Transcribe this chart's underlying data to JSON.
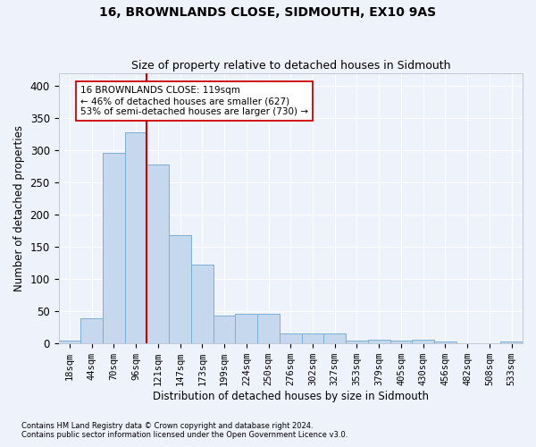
{
  "title": "16, BROWNLANDS CLOSE, SIDMOUTH, EX10 9AS",
  "subtitle": "Size of property relative to detached houses in Sidmouth",
  "xlabel_dist": "Distribution of detached houses by size in Sidmouth",
  "ylabel": "Number of detached properties",
  "footer1": "Contains HM Land Registry data © Crown copyright and database right 2024.",
  "footer2": "Contains public sector information licensed under the Open Government Licence v3.0.",
  "bin_labels": [
    "18sqm",
    "44sqm",
    "70sqm",
    "96sqm",
    "121sqm",
    "147sqm",
    "173sqm",
    "199sqm",
    "224sqm",
    "250sqm",
    "276sqm",
    "302sqm",
    "327sqm",
    "353sqm",
    "379sqm",
    "405sqm",
    "430sqm",
    "456sqm",
    "482sqm",
    "508sqm",
    "533sqm"
  ],
  "bar_values": [
    4,
    39,
    297,
    328,
    278,
    168,
    123,
    44,
    46,
    46,
    15,
    15,
    15,
    5,
    6,
    5,
    6,
    3,
    1,
    0,
    3
  ],
  "bar_color": "#c5d8ed",
  "bar_edge_color": "#7bafd4",
  "vline_x": 3.5,
  "vline_color": "#cc0000",
  "annotation_text": "16 BROWNLANDS CLOSE: 119sqm\n← 46% of detached houses are smaller (627)\n53% of semi-detached houses are larger (730) →",
  "annotation_box_color": "white",
  "annotation_box_edge": "#cc0000",
  "ylim": [
    0,
    420
  ],
  "yticks": [
    0,
    50,
    100,
    150,
    200,
    250,
    300,
    350,
    400
  ],
  "background_color": "#eef2fa",
  "grid_color": "white",
  "title_fontsize": 10,
  "subtitle_fontsize": 9,
  "axis_fontsize": 8.5,
  "tick_fontsize": 7.5,
  "footer_fontsize": 6.0
}
